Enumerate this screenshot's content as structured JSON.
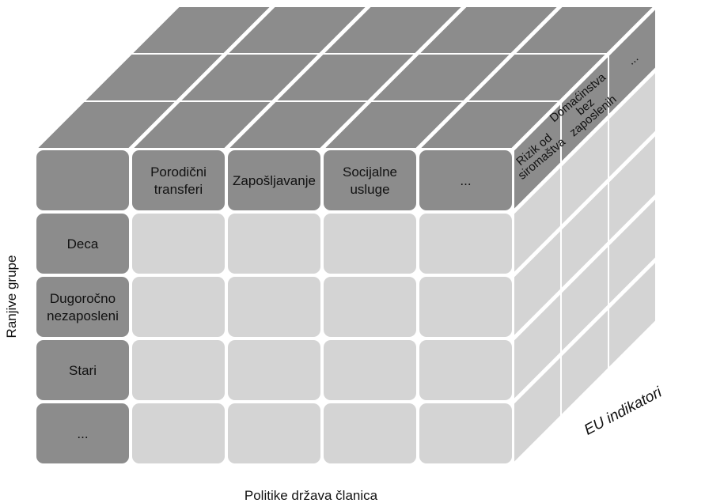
{
  "columns": [
    [
      "Porodični",
      "transferi"
    ],
    [
      "Zapošljavanje"
    ],
    [
      "Socijalne",
      "usluge"
    ],
    [
      "..."
    ]
  ],
  "rows": [
    [
      "Deca"
    ],
    [
      "Dugoročno",
      "nezaposleni"
    ],
    [
      "Stari"
    ],
    [
      "..."
    ]
  ],
  "depth": [
    [
      "Rizik od",
      "siromaštva"
    ],
    [
      "Domaćinstva",
      "bez",
      "zaposlenih"
    ],
    [
      "..."
    ]
  ],
  "axes": {
    "rows_label": "Ranjive grupe",
    "columns_label": "Politike država članica",
    "depth_label": "EU indikatori"
  }
}
